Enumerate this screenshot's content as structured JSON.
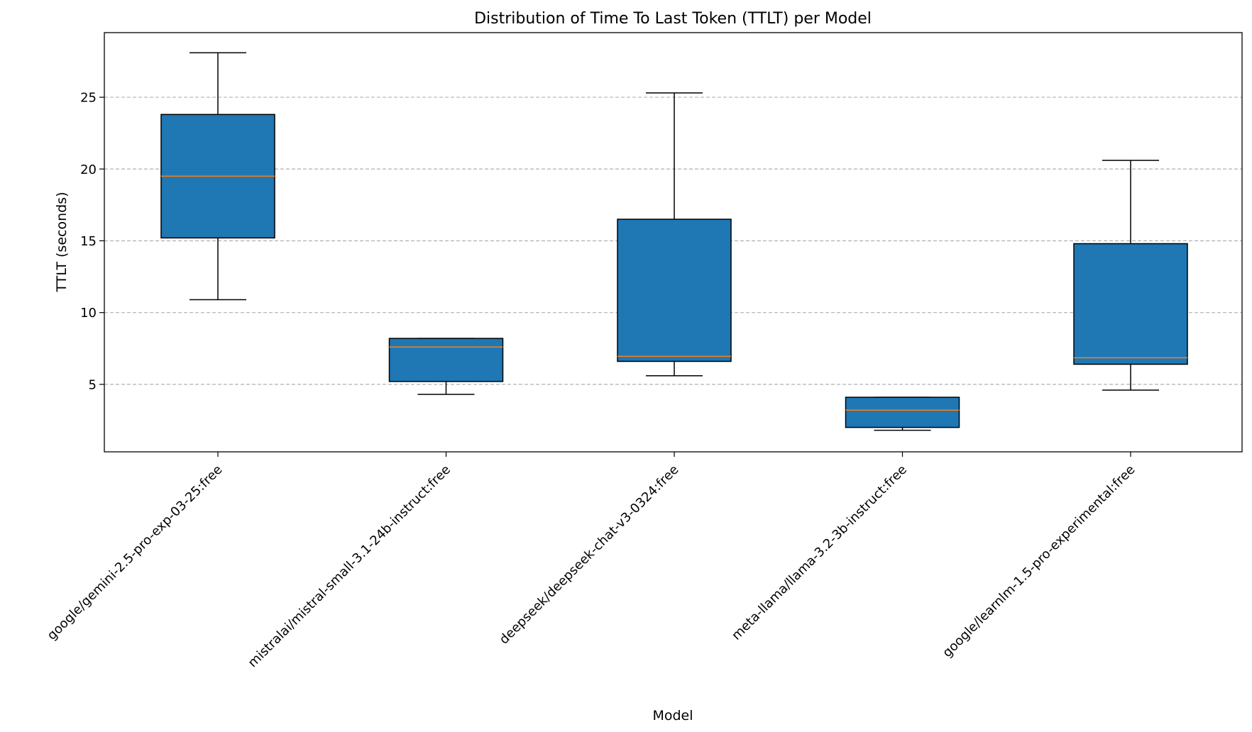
{
  "chart_data": {
    "type": "box",
    "title": "Distribution of Time To Last Token (TTLT) per Model",
    "xlabel": "Model",
    "ylabel": "TTLT (seconds)",
    "ylim": [
      0.3,
      29.5
    ],
    "yticks": [
      5,
      10,
      15,
      20,
      25
    ],
    "grid": "y-dashed",
    "colors": {
      "box_fill": "#1f77b4",
      "median": "#ff7f0e",
      "grid": "#b0b0b0",
      "edge": "#000000"
    },
    "boxes": [
      {
        "label": "google/gemini-2.5-pro-exp-03-25:free",
        "whislo": 10.9,
        "q1": 15.2,
        "med": 19.5,
        "q3": 23.8,
        "whishi": 28.1
      },
      {
        "label": "mistralai/mistral-small-3.1-24b-instruct:free",
        "whislo": 4.3,
        "q1": 5.2,
        "med": 7.6,
        "q3": 8.2,
        "whishi": 8.2
      },
      {
        "label": "deepseek/deepseek-chat-v3-0324:free",
        "whislo": 5.6,
        "q1": 6.6,
        "med": 6.95,
        "q3": 16.5,
        "whishi": 25.3
      },
      {
        "label": "meta-llama/llama-3.2-3b-instruct:free",
        "whislo": 1.8,
        "q1": 2.0,
        "med": 3.2,
        "q3": 4.1,
        "whishi": 4.1
      },
      {
        "label": "google/learnlm-1.5-pro-experimental:free",
        "whislo": 4.6,
        "q1": 6.4,
        "med": 6.85,
        "q3": 14.8,
        "whishi": 20.6
      }
    ]
  }
}
